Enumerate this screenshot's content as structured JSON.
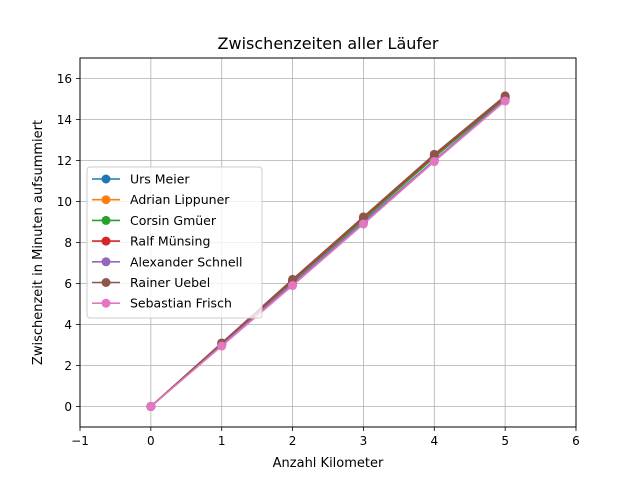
{
  "chart_data": {
    "type": "line",
    "title": "Zwischenzeiten aller Läufer",
    "xlabel": "Anzahl Kilometer",
    "ylabel": "Zwischenzeit in Minuten aufsummiert",
    "xlim": [
      -1,
      6
    ],
    "ylim": [
      -1,
      17
    ],
    "xticks": [
      -1,
      0,
      1,
      2,
      3,
      4,
      5,
      6
    ],
    "yticks": [
      0,
      2,
      4,
      6,
      8,
      10,
      12,
      14,
      16
    ],
    "grid": true,
    "legend_position": "center-left",
    "x": [
      0,
      1,
      2,
      3,
      4,
      5
    ],
    "series": [
      {
        "name": "Urs Meier",
        "color": "#1f77b4",
        "values": [
          0,
          3.0,
          6.0,
          9.0,
          12.0,
          15.0
        ]
      },
      {
        "name": "Adrian Lippuner",
        "color": "#ff7f0e",
        "values": [
          0,
          3.05,
          6.1,
          9.15,
          12.2,
          15.1
        ]
      },
      {
        "name": "Corsin Gmüer",
        "color": "#2ca02c",
        "values": [
          0,
          3.05,
          6.1,
          9.1,
          12.15,
          15.05
        ]
      },
      {
        "name": "Ralf Münsing",
        "color": "#d62728",
        "values": [
          0,
          3.08,
          6.15,
          9.2,
          12.25,
          15.1
        ]
      },
      {
        "name": "Alexander Schnell",
        "color": "#9467bd",
        "values": [
          0,
          3.0,
          6.0,
          9.0,
          12.0,
          14.95
        ]
      },
      {
        "name": "Rainer Uebel",
        "color": "#8c564b",
        "values": [
          0,
          3.1,
          6.2,
          9.25,
          12.3,
          15.15
        ]
      },
      {
        "name": "Sebastian Frisch",
        "color": "#e377c2",
        "values": [
          0,
          2.95,
          5.9,
          8.9,
          11.95,
          14.9
        ]
      }
    ]
  }
}
